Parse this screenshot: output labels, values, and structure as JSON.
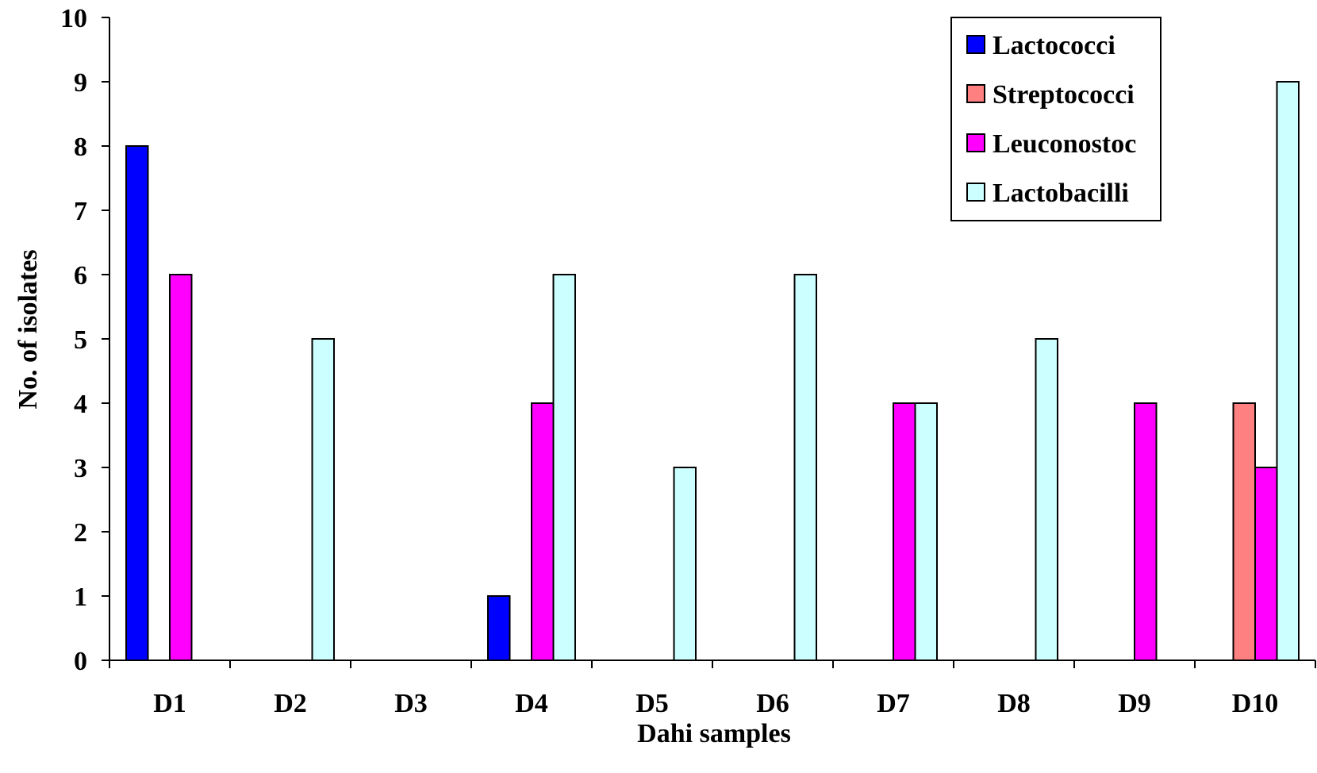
{
  "chart_data": {
    "type": "bar",
    "xlabel": "Dahi samples",
    "ylabel": "No. of isolates",
    "ylim": [
      0,
      10
    ],
    "yticks": [
      "0",
      "1",
      "2",
      "3",
      "4",
      "5",
      "6",
      "7",
      "8",
      "9",
      "10"
    ],
    "categories": [
      "D1",
      "D2",
      "D3",
      "D4",
      "D5",
      "D6",
      "D7",
      "D8",
      "D9",
      "D10"
    ],
    "series": [
      {
        "name": "Lactococci",
        "color": "#0000ff",
        "values": [
          8,
          0,
          0,
          1,
          0,
          0,
          0,
          0,
          0,
          0
        ]
      },
      {
        "name": "Streptococci",
        "color": "#ff8080",
        "values": [
          0,
          0,
          0,
          0,
          0,
          0,
          0,
          0,
          0,
          4
        ]
      },
      {
        "name": "Leuconostoc",
        "color": "#ff00ff",
        "values": [
          6,
          0,
          0,
          4,
          0,
          0,
          4,
          0,
          4,
          3
        ]
      },
      {
        "name": "Lactobacilli",
        "color": "#ccffff",
        "values": [
          0,
          5,
          0,
          6,
          3,
          6,
          4,
          5,
          0,
          9
        ]
      }
    ],
    "grid": false,
    "legend_position": "top-right"
  }
}
